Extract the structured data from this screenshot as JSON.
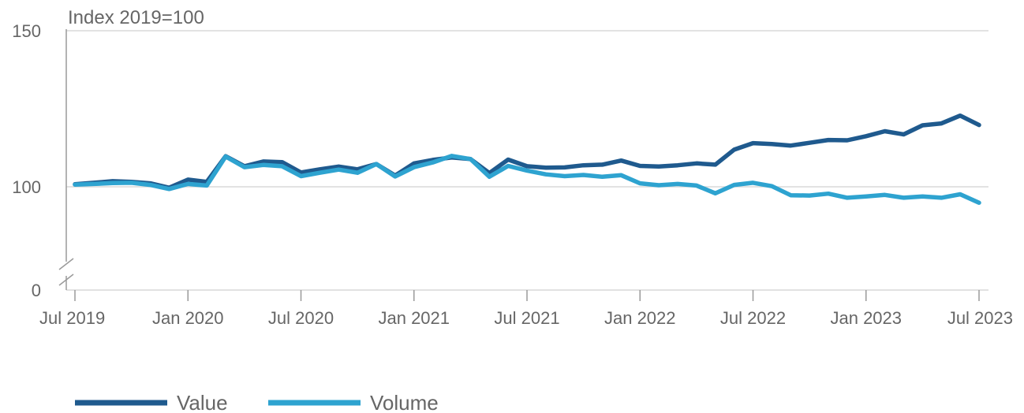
{
  "chart_data": {
    "type": "line",
    "ylabel": "Index 2019=100",
    "y_axis_break": true,
    "y_ticks": [
      0,
      100,
      150
    ],
    "y_tick_labels": [
      "0",
      "100",
      "150"
    ],
    "x_ticks": [
      "2019-07",
      "2020-01",
      "2020-07",
      "2021-01",
      "2021-07",
      "2022-01",
      "2022-07",
      "2023-01",
      "2023-07"
    ],
    "x_tick_labels": [
      "Jul 2019",
      "Jan 2020",
      "Jul 2020",
      "Jan 2021",
      "Jul 2021",
      "Jan 2022",
      "Jul 2022",
      "Jan 2023",
      "Jul 2023"
    ],
    "grid": "horizontal",
    "legend_position": "bottom-left",
    "x": [
      "2019-07",
      "2019-08",
      "2019-09",
      "2019-10",
      "2019-11",
      "2019-12",
      "2020-01",
      "2020-02",
      "2020-03",
      "2020-04",
      "2020-05",
      "2020-06",
      "2020-07",
      "2020-08",
      "2020-09",
      "2020-10",
      "2020-11",
      "2020-12",
      "2021-01",
      "2021-02",
      "2021-03",
      "2021-04",
      "2021-05",
      "2021-06",
      "2021-07",
      "2021-08",
      "2021-09",
      "2021-10",
      "2021-11",
      "2021-12",
      "2022-01",
      "2022-02",
      "2022-03",
      "2022-04",
      "2022-05",
      "2022-06",
      "2022-07",
      "2022-08",
      "2022-09",
      "2022-10",
      "2022-11",
      "2022-12",
      "2023-01",
      "2023-02",
      "2023-03",
      "2023-04",
      "2023-05",
      "2023-06",
      "2023-07"
    ],
    "series": [
      {
        "name": "Value",
        "color": "#1f5a8e",
        "values": [
          100.8,
          101.3,
          101.8,
          101.6,
          101.1,
          99.7,
          102.3,
          101.6,
          109.8,
          106.6,
          108.1,
          107.9,
          104.6,
          105.6,
          106.5,
          105.6,
          107.3,
          103.6,
          107.5,
          108.6,
          109.4,
          108.9,
          104.4,
          108.7,
          106.6,
          106.1,
          106.2,
          106.9,
          107.1,
          108.4,
          106.7,
          106.5,
          106.9,
          107.5,
          107.1,
          111.9,
          114.0,
          113.7,
          113.2,
          114.1,
          115.0,
          114.9,
          116.2,
          117.8,
          116.8,
          119.7,
          120.3,
          122.8,
          119.8
        ]
      },
      {
        "name": "Volume",
        "color": "#2ea3d0",
        "values": [
          100.7,
          100.9,
          101.2,
          101.3,
          100.6,
          99.3,
          100.9,
          100.4,
          109.7,
          106.3,
          107.0,
          106.6,
          103.4,
          104.5,
          105.5,
          104.5,
          107.3,
          103.3,
          106.3,
          107.8,
          109.9,
          108.9,
          103.2,
          106.7,
          105.2,
          104.0,
          103.4,
          103.8,
          103.2,
          103.7,
          101.1,
          100.5,
          100.9,
          100.4,
          97.9,
          100.6,
          101.3,
          100.2,
          97.3,
          97.2,
          97.8,
          96.5,
          96.9,
          97.4,
          96.5,
          96.9,
          96.5,
          97.6,
          94.9
        ]
      }
    ]
  }
}
